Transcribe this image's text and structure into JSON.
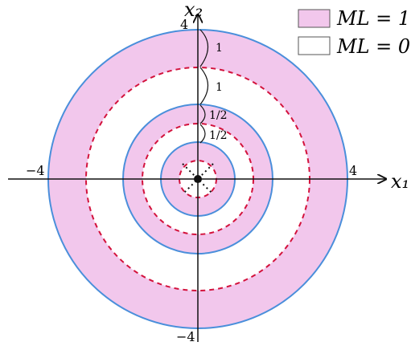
{
  "diagram": {
    "axes": {
      "x_label": "x₁",
      "y_label": "x₂"
    },
    "ticks": {
      "x_left": "−4",
      "x_right": "4",
      "y_top": "4",
      "y_bottom": "−4"
    },
    "legend": [
      {
        "label": "ML = 1",
        "color": "#f2c7ec"
      },
      {
        "label": "ML = 0",
        "color": "#ffffff"
      }
    ],
    "brackets": [
      {
        "label": "1"
      },
      {
        "label": "1"
      },
      {
        "label": "1/2"
      },
      {
        "label": "1/2"
      }
    ]
  },
  "colors": {
    "ring_fill": "#f2c7ec",
    "outer_circle": "#4a8fdb",
    "dashed_circle": "#d3123c",
    "axes": "#111111"
  }
}
